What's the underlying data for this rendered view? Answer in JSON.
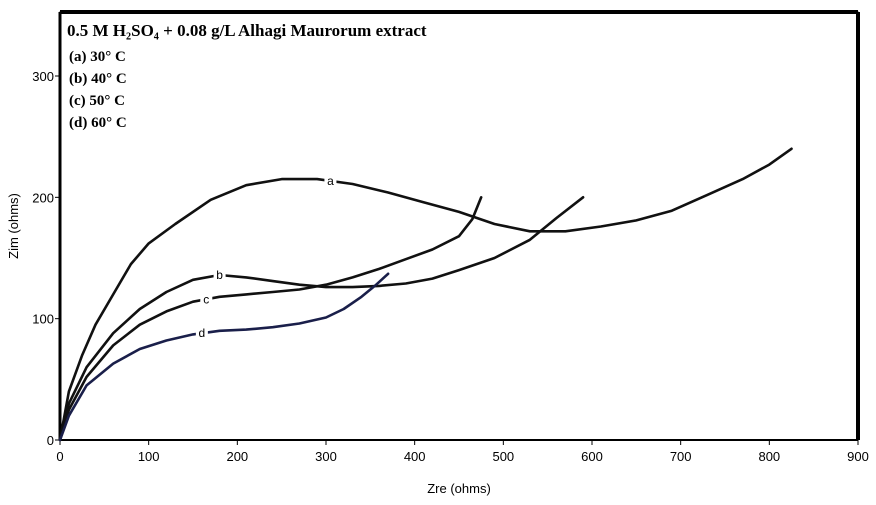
{
  "chart_data": {
    "type": "line",
    "title": "0.5 M H₂SO₄ + 0.08 g/L Alhagi Maurorum extract",
    "legend": [
      "(a) 30° C",
      "(b) 40° C",
      "(c) 50° C",
      "(d) 60° C"
    ],
    "legend_position": "top-left",
    "xlabel": "Zre (ohms)",
    "ylabel": "Zim (ohms)",
    "xlim": [
      0,
      900
    ],
    "ylim": [
      0,
      300
    ],
    "xticks": [
      0,
      100,
      200,
      300,
      400,
      500,
      600,
      700,
      800,
      900
    ],
    "yticks": [
      0,
      100,
      200,
      300
    ],
    "grid": false,
    "series": [
      {
        "name": "a",
        "color": "#111111",
        "label_x": 290,
        "points": [
          [
            0,
            0
          ],
          [
            10,
            40
          ],
          [
            25,
            70
          ],
          [
            40,
            95
          ],
          [
            60,
            120
          ],
          [
            80,
            145
          ],
          [
            100,
            162
          ],
          [
            130,
            178
          ],
          [
            170,
            198
          ],
          [
            210,
            210
          ],
          [
            250,
            215
          ],
          [
            290,
            215
          ],
          [
            330,
            211
          ],
          [
            370,
            204
          ],
          [
            410,
            196
          ],
          [
            450,
            188
          ],
          [
            490,
            178
          ],
          [
            530,
            172
          ],
          [
            570,
            172
          ],
          [
            610,
            176
          ],
          [
            650,
            181
          ],
          [
            690,
            189
          ],
          [
            730,
            202
          ],
          [
            770,
            215
          ],
          [
            800,
            227
          ],
          [
            825,
            240
          ]
        ]
      },
      {
        "name": "b",
        "color": "#111111",
        "label_x": 165,
        "points": [
          [
            0,
            0
          ],
          [
            10,
            30
          ],
          [
            30,
            60
          ],
          [
            60,
            88
          ],
          [
            90,
            108
          ],
          [
            120,
            122
          ],
          [
            150,
            132
          ],
          [
            180,
            136
          ],
          [
            210,
            134
          ],
          [
            240,
            131
          ],
          [
            270,
            128
          ],
          [
            300,
            126
          ],
          [
            330,
            126
          ],
          [
            360,
            127
          ],
          [
            390,
            129
          ],
          [
            420,
            133
          ],
          [
            450,
            140
          ],
          [
            490,
            150
          ],
          [
            530,
            165
          ],
          [
            560,
            183
          ],
          [
            590,
            200
          ]
        ]
      },
      {
        "name": "c",
        "color": "#111111",
        "label_x": 150,
        "points": [
          [
            0,
            0
          ],
          [
            10,
            25
          ],
          [
            30,
            52
          ],
          [
            60,
            78
          ],
          [
            90,
            95
          ],
          [
            120,
            106
          ],
          [
            150,
            114
          ],
          [
            180,
            118
          ],
          [
            210,
            120
          ],
          [
            240,
            122
          ],
          [
            270,
            124
          ],
          [
            300,
            128
          ],
          [
            330,
            134
          ],
          [
            360,
            141
          ],
          [
            390,
            149
          ],
          [
            420,
            157
          ],
          [
            450,
            168
          ],
          [
            465,
            182
          ],
          [
            475,
            200
          ]
        ]
      },
      {
        "name": "d",
        "color": "#1a1f4a",
        "label_x": 145,
        "points": [
          [
            0,
            0
          ],
          [
            10,
            20
          ],
          [
            30,
            45
          ],
          [
            60,
            63
          ],
          [
            90,
            75
          ],
          [
            120,
            82
          ],
          [
            150,
            87
          ],
          [
            180,
            90
          ],
          [
            210,
            91
          ],
          [
            240,
            93
          ],
          [
            270,
            96
          ],
          [
            300,
            101
          ],
          [
            320,
            108
          ],
          [
            340,
            118
          ],
          [
            355,
            127
          ],
          [
            370,
            137
          ]
        ]
      }
    ]
  }
}
